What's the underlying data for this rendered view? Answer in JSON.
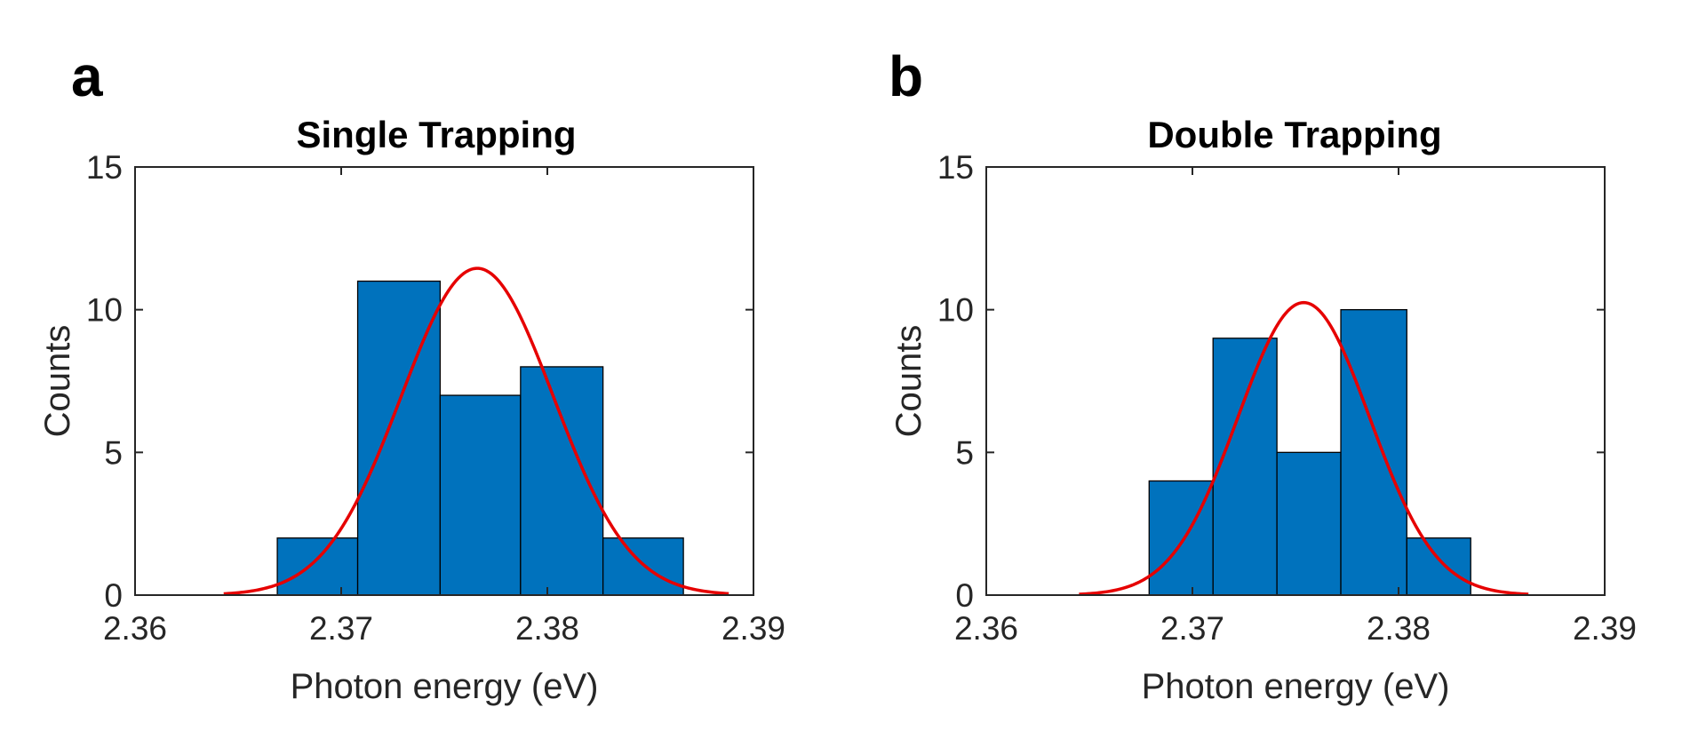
{
  "colors": {
    "bar": "#0072BD",
    "fit": "#E60000",
    "axis": "#262626"
  },
  "panels": [
    {
      "letter": "a",
      "chart_data": {
        "type": "bar",
        "title": "Single Trapping",
        "xlabel": "Photon energy (eV)",
        "ylabel": "Counts",
        "xlim": [
          2.36,
          2.39
        ],
        "ylim": [
          0,
          15
        ],
        "xticks": [
          2.36,
          2.37,
          2.38,
          2.39
        ],
        "xtick_labels": [
          "2.36",
          "2.37",
          "2.38",
          "2.39"
        ],
        "yticks": [
          0,
          5,
          10,
          15
        ],
        "ytick_labels": [
          "0",
          "5",
          "10",
          "15"
        ],
        "bins": [
          {
            "x0": 2.3669,
            "x1": 2.3708,
            "count": 2
          },
          {
            "x0": 2.3708,
            "x1": 2.3748,
            "count": 11
          },
          {
            "x0": 2.3748,
            "x1": 2.3787,
            "count": 7
          },
          {
            "x0": 2.3787,
            "x1": 2.3827,
            "count": 8
          },
          {
            "x0": 2.3827,
            "x1": 2.3866,
            "count": 2
          }
        ],
        "fit": {
          "type": "gaussian",
          "amplitude": 11.45,
          "mean": 2.3766,
          "sigma": 0.0037,
          "x_range": [
            2.3643,
            2.3888
          ]
        }
      }
    },
    {
      "letter": "b",
      "chart_data": {
        "type": "bar",
        "title": "Double Trapping",
        "xlabel": "Photon energy (eV)",
        "ylabel": "Counts",
        "xlim": [
          2.36,
          2.39
        ],
        "ylim": [
          0,
          15
        ],
        "xticks": [
          2.36,
          2.37,
          2.38,
          2.39
        ],
        "xtick_labels": [
          "2.36",
          "2.37",
          "2.38",
          "2.39"
        ],
        "yticks": [
          0,
          5,
          10,
          15
        ],
        "ytick_labels": [
          "0",
          "5",
          "10",
          "15"
        ],
        "bins": [
          {
            "x0": 2.3679,
            "x1": 2.371,
            "count": 4
          },
          {
            "x0": 2.371,
            "x1": 2.3741,
            "count": 9
          },
          {
            "x0": 2.3741,
            "x1": 2.3772,
            "count": 5
          },
          {
            "x0": 2.3772,
            "x1": 2.3804,
            "count": 10
          },
          {
            "x0": 2.3804,
            "x1": 2.3835,
            "count": 2
          }
        ],
        "fit": {
          "type": "gaussian",
          "amplitude": 10.25,
          "mean": 2.3754,
          "sigma": 0.0032,
          "x_range": [
            2.3645,
            2.3863
          ]
        }
      }
    }
  ]
}
